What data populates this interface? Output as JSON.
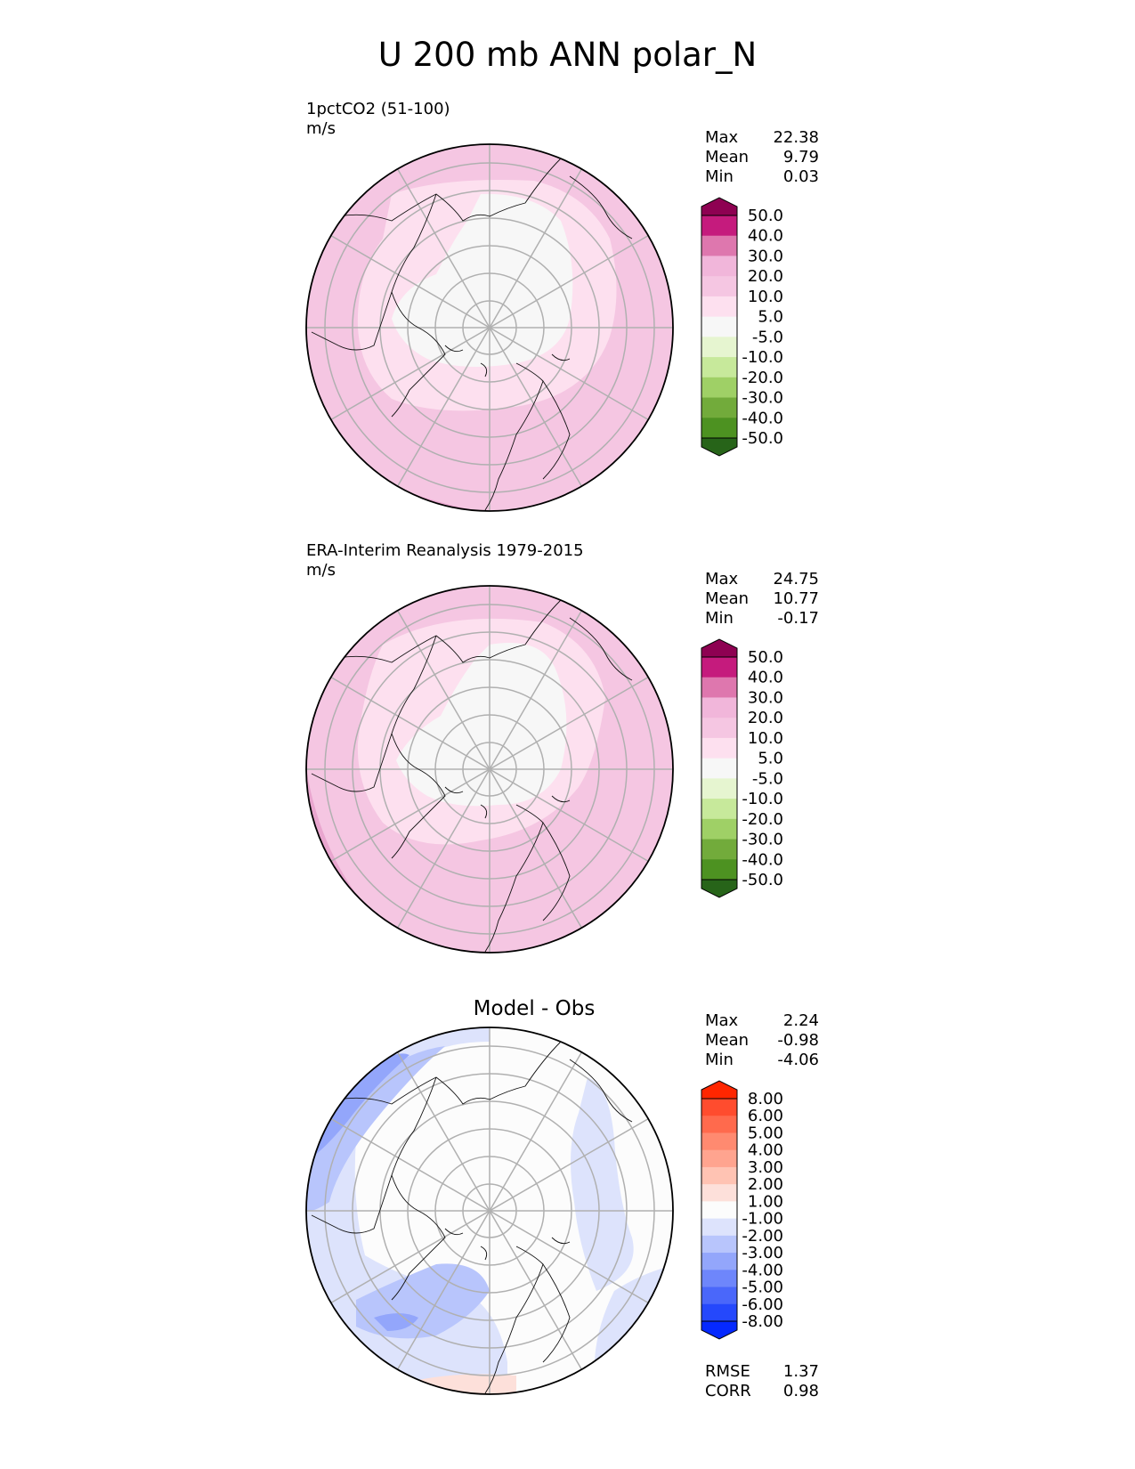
{
  "title": "U 200 mb ANN polar_N",
  "panels": [
    {
      "id": "test",
      "title": "1pctCO2 (51-100)",
      "units": "m/s",
      "stats": {
        "max_label": "Max",
        "max": "22.38",
        "mean_label": "Mean",
        "mean": "9.79",
        "min_label": "Min",
        "min": "0.03"
      },
      "colorbar": {
        "levels": [
          "50.0",
          "40.0",
          "30.0",
          "20.0",
          "10.0",
          "5.0",
          "-5.0",
          "-10.0",
          "-20.0",
          "-30.0",
          "-40.0",
          "-50.0"
        ],
        "colors": [
          "#8e0152",
          "#c51b7d",
          "#de77ae",
          "#f1b6da",
          "#f5c6e2",
          "#fde0ef",
          "#f7f7f7",
          "#e6f5d0",
          "#c7e99b",
          "#9fd066",
          "#72ab3b",
          "#4d9221",
          "#276419"
        ]
      }
    },
    {
      "id": "ref",
      "title": "ERA-Interim Reanalysis 1979-2015",
      "units": "m/s",
      "stats": {
        "max_label": "Max",
        "max": "24.75",
        "mean_label": "Mean",
        "mean": "10.77",
        "min_label": "Min",
        "min": "-0.17"
      },
      "colorbar": {
        "levels": [
          "50.0",
          "40.0",
          "30.0",
          "20.0",
          "10.0",
          "5.0",
          "-5.0",
          "-10.0",
          "-20.0",
          "-30.0",
          "-40.0",
          "-50.0"
        ],
        "colors": [
          "#8e0152",
          "#c51b7d",
          "#de77ae",
          "#f1b6da",
          "#f5c6e2",
          "#fde0ef",
          "#f7f7f7",
          "#e6f5d0",
          "#c7e99b",
          "#9fd066",
          "#72ab3b",
          "#4d9221",
          "#276419"
        ]
      }
    },
    {
      "id": "diff",
      "title": "Model - Obs",
      "units": "",
      "stats": {
        "max_label": "Max",
        "max": "2.24",
        "mean_label": "Mean",
        "mean": "-0.98",
        "min_label": "Min",
        "min": "-4.06"
      },
      "metrics": {
        "rmse_label": "RMSE",
        "rmse": "1.37",
        "corr_label": "CORR",
        "corr": "0.98"
      },
      "colorbar": {
        "levels": [
          "8.00",
          "6.00",
          "5.00",
          "4.00",
          "3.00",
          "2.00",
          "1.00",
          "-1.00",
          "-2.00",
          "-3.00",
          "-4.00",
          "-5.00",
          "-6.00",
          "-8.00"
        ],
        "colors": [
          "#ff2600",
          "#ff4c2e",
          "#ff6a4d",
          "#ff8a70",
          "#ffa48f",
          "#ffc3b3",
          "#fde0da",
          "#fcfcfc",
          "#dde3fc",
          "#b8c5fc",
          "#93a6fb",
          "#6e86fb",
          "#4a67fa",
          "#2548fc",
          "#0529ff"
        ]
      }
    }
  ],
  "chart_data": {
    "type": "heatmap",
    "title": "U 200 mb ANN polar_N",
    "variable": "U",
    "level": "200 mb",
    "season": "ANN",
    "region": "polar_N",
    "projection": "north polar stereographic",
    "panels": [
      {
        "name": "1pctCO2 (51-100)",
        "units": "m/s",
        "max": 22.38,
        "mean": 9.79,
        "min": 0.03,
        "contour_levels": [
          -50,
          -40,
          -30,
          -20,
          -10,
          -5,
          5,
          10,
          20,
          30,
          40,
          50
        ]
      },
      {
        "name": "ERA-Interim Reanalysis 1979-2015",
        "units": "m/s",
        "max": 24.75,
        "mean": 10.77,
        "min": -0.17,
        "contour_levels": [
          -50,
          -40,
          -30,
          -20,
          -10,
          -5,
          5,
          10,
          20,
          30,
          40,
          50
        ]
      },
      {
        "name": "Model - Obs",
        "max": 2.24,
        "mean": -0.98,
        "min": -4.06,
        "rmse": 1.37,
        "corr": 0.98,
        "contour_levels": [
          -8,
          -6,
          -5,
          -4,
          -3,
          -2,
          -1,
          1,
          2,
          3,
          4,
          5,
          6,
          8
        ]
      }
    ]
  }
}
